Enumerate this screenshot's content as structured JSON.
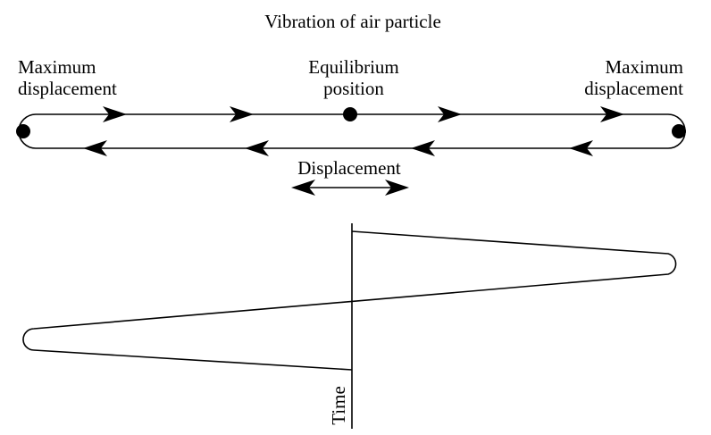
{
  "diagram": {
    "title": "Vibration of air particle",
    "left_label": [
      "Maximum",
      "displacement"
    ],
    "center_label": [
      "Equilibrium",
      "position"
    ],
    "right_label": [
      "Maximum",
      "displacement"
    ],
    "displacement_label": "Displacement",
    "time_axis_label": "Time"
  },
  "colors": {
    "ink": "#000000",
    "background": "#ffffff"
  }
}
